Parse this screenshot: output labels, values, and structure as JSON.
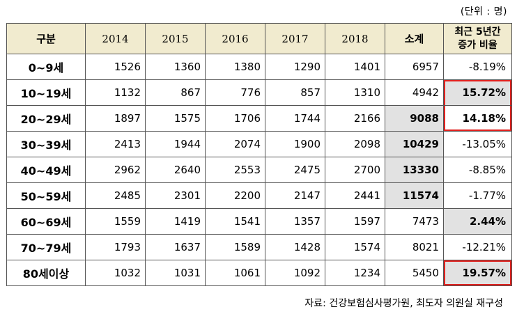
{
  "unit_note": "(단위 : 명)",
  "headers": {
    "category": "구분",
    "years": [
      "2014",
      "2015",
      "2016",
      "2017",
      "2018"
    ],
    "subtotal": "소계",
    "rate_line1": "최근 5년간",
    "rate_line2": "증가 비율"
  },
  "rows": [
    {
      "age": "0~9세",
      "values": [
        "1526",
        "1360",
        "1380",
        "1290",
        "1401"
      ],
      "subtotal": "6957",
      "rate": "-8.19%"
    },
    {
      "age": "10~19세",
      "values": [
        "1132",
        "867",
        "776",
        "857",
        "1310"
      ],
      "subtotal": "4942",
      "rate": "15.72%"
    },
    {
      "age": "20~29세",
      "values": [
        "1897",
        "1575",
        "1706",
        "1744",
        "2166"
      ],
      "subtotal": "9088",
      "rate": "14.18%"
    },
    {
      "age": "30~39세",
      "values": [
        "2413",
        "1944",
        "2074",
        "1900",
        "2098"
      ],
      "subtotal": "10429",
      "rate": "-13.05%"
    },
    {
      "age": "40~49세",
      "values": [
        "2962",
        "2640",
        "2553",
        "2475",
        "2700"
      ],
      "subtotal": "13330",
      "rate": "-8.85%"
    },
    {
      "age": "50~59세",
      "values": [
        "2485",
        "2301",
        "2200",
        "2147",
        "2441"
      ],
      "subtotal": "11574",
      "rate": "-1.77%"
    },
    {
      "age": "60~69세",
      "values": [
        "1559",
        "1419",
        "1541",
        "1357",
        "1597"
      ],
      "subtotal": "7473",
      "rate": "2.44%"
    },
    {
      "age": "70~79세",
      "values": [
        "1793",
        "1637",
        "1589",
        "1428",
        "1574"
      ],
      "subtotal": "8021",
      "rate": "-12.21%"
    },
    {
      "age": "80세이상",
      "values": [
        "1032",
        "1031",
        "1061",
        "1092",
        "1234"
      ],
      "subtotal": "5450",
      "rate": "19.57%"
    }
  ],
  "colors": {
    "header_bg": "#f1ebcf",
    "highlight_gray": "#e2e2e2",
    "highlight_red": "#e0201d"
  },
  "source": "자료: 건강보험심사평가원, 최도자 의원실 재구성"
}
